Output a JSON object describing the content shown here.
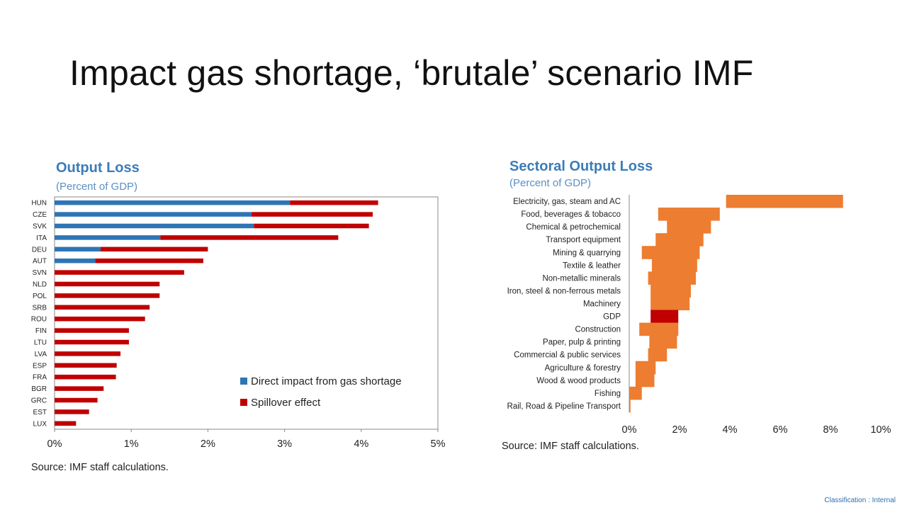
{
  "slide": {
    "title": "Impact gas shortage, ‘brutale’ scenario IMF"
  },
  "classification": "Classification : Internal",
  "chart_data": [
    {
      "type": "bar",
      "orientation": "horizontal",
      "stacked": true,
      "title": "Output Loss",
      "subtitle": "(Percent of GDP)",
      "source": "Source: IMF staff calculations.",
      "categories": [
        "HUN",
        "CZE",
        "SVK",
        "ITA",
        "DEU",
        "AUT",
        "SVN",
        "NLD",
        "POL",
        "SRB",
        "ROU",
        "FIN",
        "LTU",
        "LVA",
        "ESP",
        "FRA",
        "BGR",
        "GRC",
        "EST",
        "LUX"
      ],
      "series": [
        {
          "name": "Direct impact from gas shortage",
          "color": "#2e75b6",
          "values": [
            3.07,
            2.57,
            2.6,
            1.38,
            0.6,
            0.53,
            0,
            0,
            0,
            0,
            0,
            0,
            0,
            0,
            0,
            0,
            0,
            0,
            0,
            0
          ]
        },
        {
          "name": "Spillover effect",
          "color": "#c00000",
          "values": [
            1.15,
            1.58,
            1.5,
            2.32,
            1.4,
            1.41,
            1.69,
            1.37,
            1.37,
            1.24,
            1.18,
            0.97,
            0.97,
            0.86,
            0.81,
            0.8,
            0.64,
            0.56,
            0.45,
            0.28
          ]
        }
      ],
      "xlim": [
        0,
        5
      ],
      "xticks": [
        "0%",
        "1%",
        "2%",
        "3%",
        "4%",
        "5%"
      ],
      "legend_position": "bottom-right",
      "grid": false
    },
    {
      "type": "bar",
      "orientation": "horizontal",
      "floating": true,
      "title": "Sectoral Output Loss",
      "subtitle": "(Percent of GDP)",
      "source": "Source: IMF staff calculations.",
      "categories": [
        "Electricity, gas, steam and AC",
        "Food, beverages & tobacco",
        "Chemical & petrochemical",
        "Transport equipment",
        "Mining & quarrying",
        "Textile & leather",
        "Non-metallic minerals",
        "Iron, steel & non-ferrous metals",
        "Machinery",
        "GDP",
        "Construction",
        "Paper, pulp & printing",
        "Commercial & public services",
        "Agriculture & forestry",
        "Wood & wood products",
        "Fishing",
        "Rail, Road & Pipeline Transport"
      ],
      "ranges": [
        [
          3.85,
          8.5
        ],
        [
          1.15,
          3.6
        ],
        [
          1.5,
          3.25
        ],
        [
          1.05,
          2.95
        ],
        [
          0.5,
          2.8
        ],
        [
          0.9,
          2.7
        ],
        [
          0.75,
          2.65
        ],
        [
          0.85,
          2.45
        ],
        [
          0.85,
          2.4
        ],
        [
          0.85,
          1.95
        ],
        [
          0.4,
          1.95
        ],
        [
          0.8,
          1.9
        ],
        [
          0.75,
          1.5
        ],
        [
          0.25,
          1.05
        ],
        [
          0.25,
          1.0
        ],
        [
          0,
          0.5
        ],
        [
          0,
          0.05
        ]
      ],
      "colors": {
        "sector": "#ed7d31",
        "gdp": "#c00000"
      },
      "xlim": [
        0,
        10
      ],
      "xticks": [
        "0%",
        "2%",
        "4%",
        "6%",
        "8%",
        "10%"
      ],
      "grid": false
    }
  ]
}
